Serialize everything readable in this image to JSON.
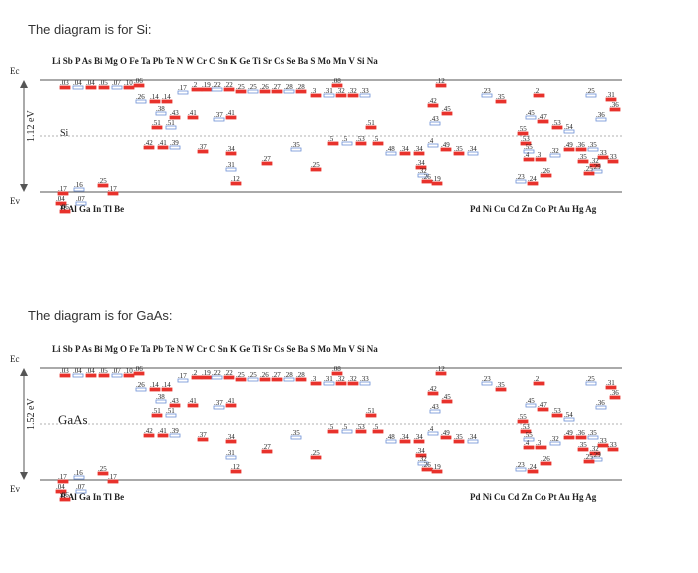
{
  "panels": [
    {
      "caption": "The diagram is for Si:",
      "material": "Si",
      "gap_label": "1.12 eV",
      "ec_label": "Ec",
      "ev_label": "Ev",
      "top_elements": "Li Sb P As Bi Mg O Fe Ta Pb Te N W Cr C Sn K Ge Ti Sr Cs Se Ba S Mo Mn V Si Na",
      "bottom_left_elements": "B Al Ga In Tl Be",
      "bottom_right_elements": "Pd Ni Cu Cd Zn Co Pt Au Hg Ag"
    },
    {
      "caption": "The diagram is for GaAs:",
      "material": "GaAs",
      "gap_label": "1.52 eV",
      "ec_label": "Ec",
      "ev_label": "Ev",
      "top_elements": "Li Sb P As Bi Mg O Fe Ta Pb Te N W Cr C Sn K Ge Ti Sr Cs Se Ba S Mo Mn V Si Na",
      "bottom_left_elements": "B Al Ga In Tl Be",
      "bottom_right_elements": "Pd Ni Cu Cd Zn Co Pt Au Hg Ag"
    }
  ],
  "level_labels": [
    ".03",
    ".04",
    ".04",
    ".05",
    ".07",
    ".10",
    ".06",
    ".26",
    ".14",
    ".14",
    ".17",
    ".2",
    ".19",
    ".22",
    ".22",
    ".25",
    ".25",
    ".26",
    ".27",
    ".28",
    ".28",
    ".3",
    ".31",
    ".32",
    ".32",
    ".33",
    ".08",
    ".12",
    ".38",
    ".43",
    ".41",
    ".37",
    ".41",
    ".51",
    ".51",
    ".42",
    ".41",
    ".39",
    ".37",
    ".34",
    ".31",
    ".12",
    ".27",
    ".35",
    ".25",
    ".5",
    ".5",
    ".53",
    ".5",
    ".48",
    ".34",
    ".34",
    ".4",
    ".49",
    ".35",
    ".34",
    ".42",
    ".45",
    ".43",
    ".51",
    ".34",
    ".23",
    ".35",
    ".2",
    ".45",
    ".47",
    ".53",
    ".54",
    ".55",
    ".53",
    ".55",
    ".4",
    ".3",
    ".32",
    ".49",
    ".36",
    ".35",
    ".33",
    ".33",
    ".25",
    ".31",
    ".36",
    ".36",
    ".35",
    ".32",
    ".29",
    ".25",
    ".26",
    ".32",
    ".26",
    ".19",
    ".23",
    ".24",
    ".17",
    ".16",
    ".25",
    ".17",
    ".07",
    ".04",
    ".06"
  ],
  "colors": {
    "donor": "#e8322c",
    "acceptor": "#6b8fd6",
    "band": "#555555",
    "text": "#222222"
  }
}
